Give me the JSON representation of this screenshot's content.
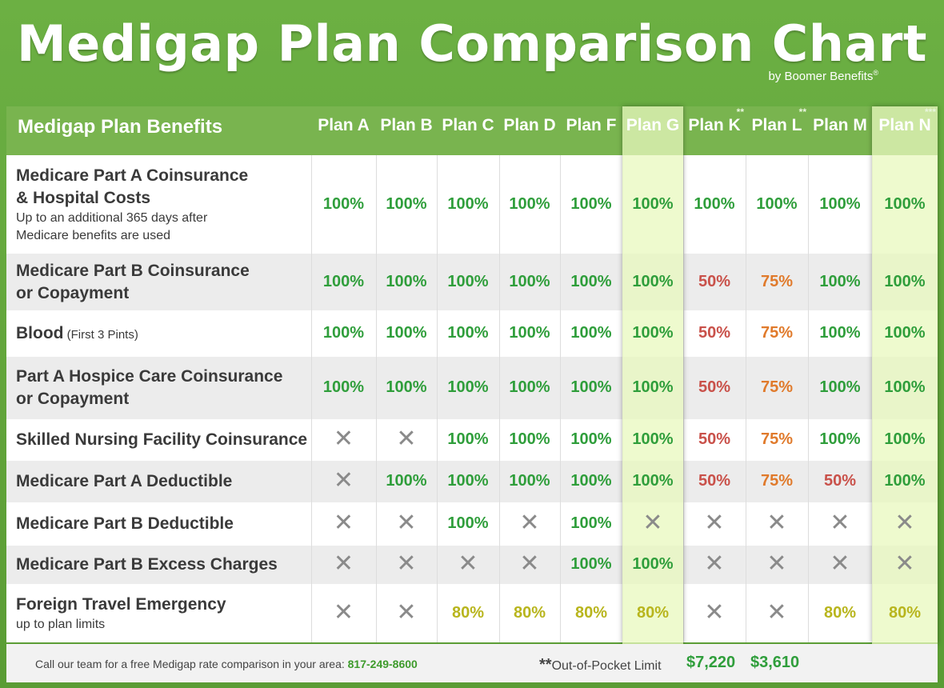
{
  "title": "Medigap Plan Comparison Chart",
  "byline": "by Boomer Benefits",
  "byline_mark": "®",
  "header_label": "Medigap Plan Benefits",
  "chart_data": {
    "type": "table",
    "plans": [
      {
        "label": "Plan A",
        "mark": ""
      },
      {
        "label": "Plan B",
        "mark": ""
      },
      {
        "label": "Plan C",
        "mark": ""
      },
      {
        "label": "Plan D",
        "mark": ""
      },
      {
        "label": "Plan F",
        "mark": ""
      },
      {
        "label": "Plan G",
        "mark": ""
      },
      {
        "label": "Plan K",
        "mark": "**"
      },
      {
        "label": "Plan L",
        "mark": "**"
      },
      {
        "label": "Plan M",
        "mark": ""
      },
      {
        "label": "Plan N",
        "mark": "***"
      }
    ],
    "highlighted": [
      "Plan G",
      "Plan N"
    ],
    "rows": [
      {
        "benefit": "Medicare Part A Coinsurance",
        "benefit2": "& Hospital Costs",
        "note": "Up to an additional 365 days after",
        "note2": "Medicare benefits are used",
        "inline": "",
        "values": [
          "100%",
          "100%",
          "100%",
          "100%",
          "100%",
          "100%",
          "100%",
          "100%",
          "100%",
          "100%"
        ]
      },
      {
        "benefit": "Medicare Part B Coinsurance",
        "benefit2": "or Copayment",
        "note": "",
        "note2": "",
        "inline": "",
        "values": [
          "100%",
          "100%",
          "100%",
          "100%",
          "100%",
          "100%",
          "50%",
          "75%",
          "100%",
          "100%"
        ]
      },
      {
        "benefit": "Blood",
        "benefit2": "",
        "note": "",
        "note2": "",
        "inline": "(First 3 Pints)",
        "values": [
          "100%",
          "100%",
          "100%",
          "100%",
          "100%",
          "100%",
          "50%",
          "75%",
          "100%",
          "100%"
        ]
      },
      {
        "benefit": "Part A Hospice Care Coinsurance",
        "benefit2": "or Copayment",
        "note": "",
        "note2": "",
        "inline": "",
        "values": [
          "100%",
          "100%",
          "100%",
          "100%",
          "100%",
          "100%",
          "50%",
          "75%",
          "100%",
          "100%"
        ]
      },
      {
        "benefit": "Skilled Nursing Facility Coinsurance",
        "benefit2": "",
        "note": "",
        "note2": "",
        "inline": "",
        "values": [
          "X",
          "X",
          "100%",
          "100%",
          "100%",
          "100%",
          "50%",
          "75%",
          "100%",
          "100%"
        ]
      },
      {
        "benefit": "Medicare Part A Deductible",
        "benefit2": "",
        "note": "",
        "note2": "",
        "inline": "",
        "values": [
          "X",
          "100%",
          "100%",
          "100%",
          "100%",
          "100%",
          "50%",
          "75%",
          "50%",
          "100%"
        ]
      },
      {
        "benefit": "Medicare Part B Deductible",
        "benefit2": "",
        "note": "",
        "note2": "",
        "inline": "",
        "values": [
          "X",
          "X",
          "100%",
          "X",
          "100%",
          "X",
          "X",
          "X",
          "X",
          "X"
        ]
      },
      {
        "benefit": "Medicare Part B Excess Charges",
        "benefit2": "",
        "note": "",
        "note2": "",
        "inline": "",
        "values": [
          "X",
          "X",
          "X",
          "X",
          "100%",
          "100%",
          "X",
          "X",
          "X",
          "X"
        ]
      },
      {
        "benefit": "Foreign Travel Emergency",
        "benefit2": "",
        "note": "up to plan limits",
        "note2": "",
        "inline": "",
        "values": [
          "X",
          "X",
          "80%",
          "80%",
          "80%",
          "80%",
          "X",
          "X",
          "80%",
          "80%"
        ]
      }
    ]
  },
  "footer": {
    "call_text": "Call our team for a free Medigap rate comparison in your area:",
    "phone": "817-249-8600",
    "oop_mark": "**",
    "oop_label": "Out-of-Pocket Limit",
    "oop_k": "$7,220",
    "oop_l": "$3,610"
  },
  "colors": {
    "green": "#2f9e3b",
    "red": "#c9514a",
    "orange": "#e07a2b",
    "olive": "#b8b51d",
    "x": "#8a8a8a",
    "frame": "#6cb043",
    "highlight": "#eef8c8"
  },
  "icons": {
    "not_covered": "x-mark-icon"
  }
}
